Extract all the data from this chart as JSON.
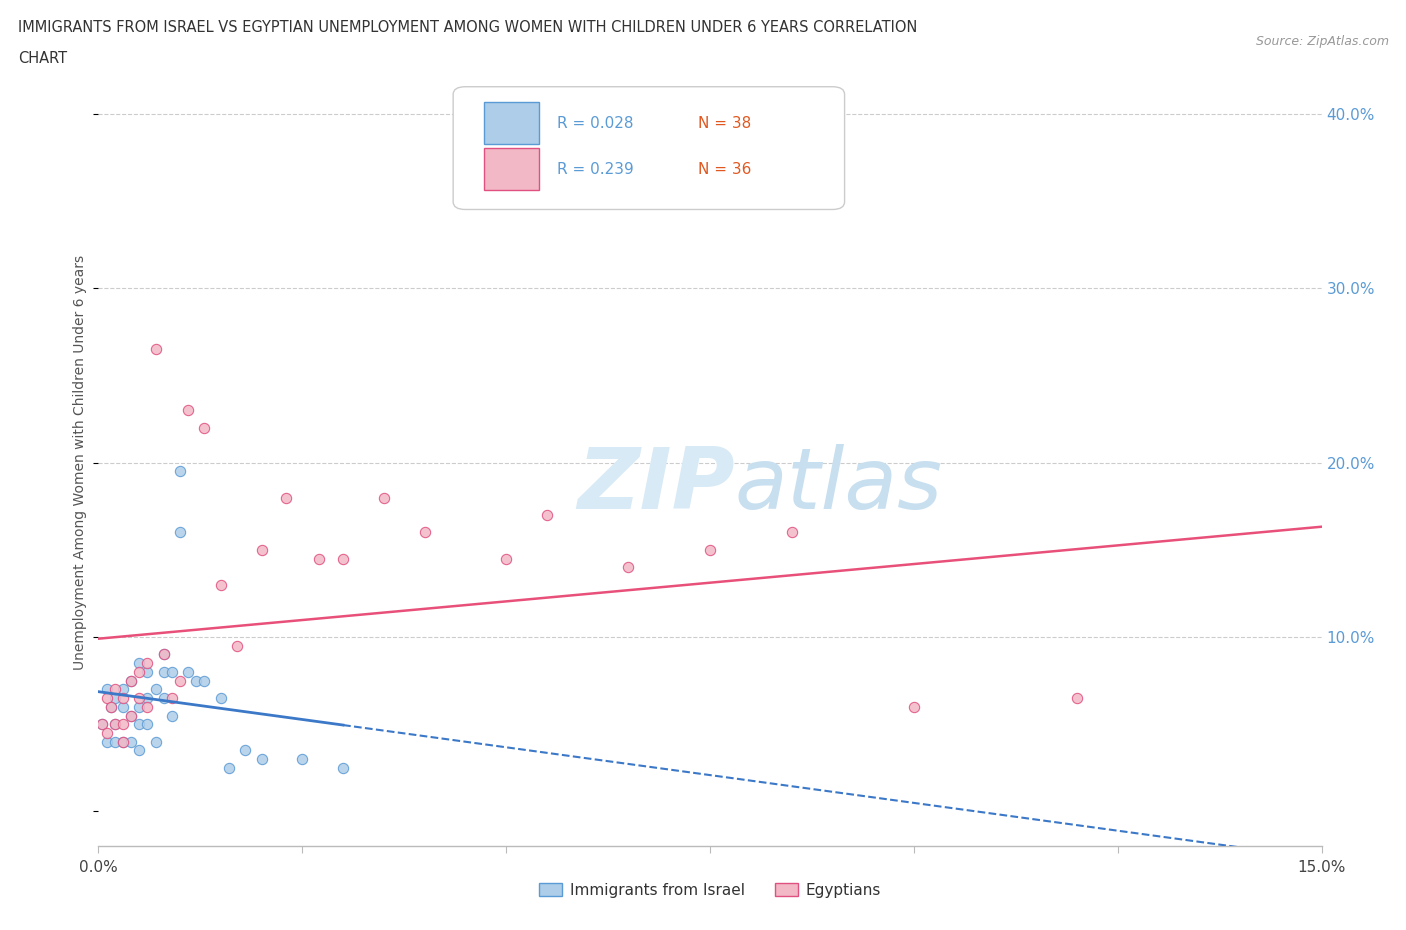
{
  "title_line1": "IMMIGRANTS FROM ISRAEL VS EGYPTIAN UNEMPLOYMENT AMONG WOMEN WITH CHILDREN UNDER 6 YEARS CORRELATION",
  "title_line2": "CHART",
  "source_text": "Source: ZipAtlas.com",
  "ylabel": "Unemployment Among Women with Children Under 6 years",
  "xlim": [
    0.0,
    0.15
  ],
  "ylim": [
    -0.02,
    0.42
  ],
  "color_israel": "#aecde8",
  "color_israel_edge": "#5b9bd5",
  "color_egypt": "#f2b8c6",
  "color_egypt_edge": "#e05080",
  "color_israel_line_solid": "#3c78c8",
  "color_egypt_line": "#e8507a",
  "color_grid": "#cccccc",
  "color_title": "#333333",
  "color_tick_y": "#5b9bd5",
  "watermark_color": "#d8eaf6",
  "israel_x": [
    0.0005,
    0.001,
    0.001,
    0.0015,
    0.002,
    0.002,
    0.002,
    0.003,
    0.003,
    0.003,
    0.004,
    0.004,
    0.004,
    0.005,
    0.005,
    0.005,
    0.005,
    0.006,
    0.006,
    0.006,
    0.007,
    0.007,
    0.008,
    0.008,
    0.008,
    0.009,
    0.009,
    0.01,
    0.01,
    0.011,
    0.012,
    0.013,
    0.015,
    0.016,
    0.018,
    0.02,
    0.025,
    0.03
  ],
  "israel_y": [
    0.05,
    0.07,
    0.04,
    0.06,
    0.065,
    0.05,
    0.04,
    0.06,
    0.07,
    0.04,
    0.075,
    0.055,
    0.04,
    0.085,
    0.06,
    0.05,
    0.035,
    0.08,
    0.065,
    0.05,
    0.07,
    0.04,
    0.09,
    0.08,
    0.065,
    0.08,
    0.055,
    0.195,
    0.16,
    0.08,
    0.075,
    0.075,
    0.065,
    0.025,
    0.035,
    0.03,
    0.03,
    0.025
  ],
  "egypt_x": [
    0.0005,
    0.001,
    0.001,
    0.0015,
    0.002,
    0.002,
    0.003,
    0.003,
    0.003,
    0.004,
    0.004,
    0.005,
    0.005,
    0.006,
    0.006,
    0.007,
    0.008,
    0.009,
    0.01,
    0.011,
    0.013,
    0.015,
    0.017,
    0.02,
    0.023,
    0.027,
    0.03,
    0.035,
    0.04,
    0.05,
    0.055,
    0.065,
    0.075,
    0.085,
    0.1,
    0.12
  ],
  "egypt_y": [
    0.05,
    0.065,
    0.045,
    0.06,
    0.07,
    0.05,
    0.065,
    0.05,
    0.04,
    0.075,
    0.055,
    0.08,
    0.065,
    0.085,
    0.06,
    0.265,
    0.09,
    0.065,
    0.075,
    0.23,
    0.22,
    0.13,
    0.095,
    0.15,
    0.18,
    0.145,
    0.145,
    0.18,
    0.16,
    0.145,
    0.17,
    0.14,
    0.15,
    0.16,
    0.06,
    0.065
  ],
  "legend_r_israel": "R = 0.028",
  "legend_n_israel": "N = 38",
  "legend_r_egypt": "R = 0.239",
  "legend_n_egypt": "N = 36"
}
